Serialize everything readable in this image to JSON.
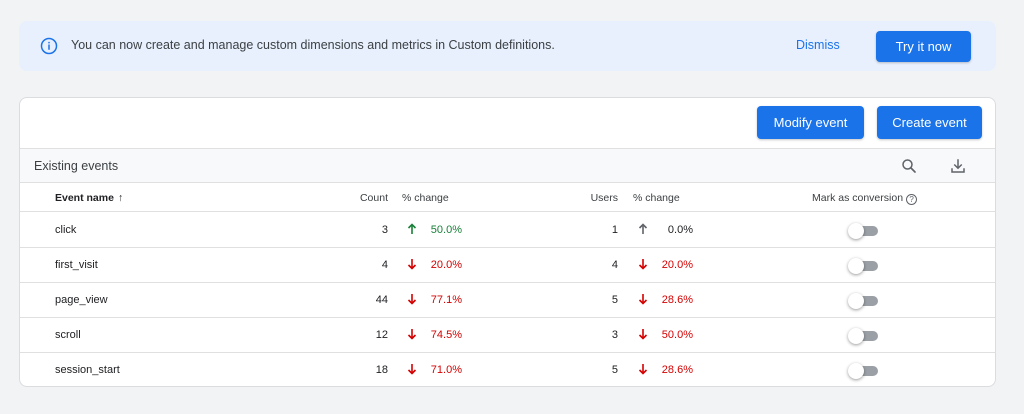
{
  "banner": {
    "message": "You can now create and manage custom dimensions and metrics in Custom definitions.",
    "dismiss_label": "Dismiss",
    "try_label": "Try it now",
    "icon": "info-icon"
  },
  "toolbar": {
    "modify_label": "Modify event",
    "create_label": "Create event"
  },
  "table": {
    "title": "Existing events",
    "search_icon": "search-icon",
    "download_icon": "download-icon",
    "headers": {
      "event_name": "Event name",
      "sort_arrow": "↑",
      "count": "Count",
      "count_change": "% change",
      "users": "Users",
      "users_change": "% change",
      "mark_conversion": "Mark as conversion",
      "help": "?"
    },
    "rows": [
      {
        "name": "click",
        "count": "3",
        "count_change": "50.0%",
        "count_dir": "up",
        "users": "1",
        "users_change": "0.0%",
        "users_dir": "neutral",
        "conversion": false
      },
      {
        "name": "first_visit",
        "count": "4",
        "count_change": "20.0%",
        "count_dir": "down",
        "users": "4",
        "users_change": "20.0%",
        "users_dir": "down",
        "conversion": false
      },
      {
        "name": "page_view",
        "count": "44",
        "count_change": "77.1%",
        "count_dir": "down",
        "users": "5",
        "users_change": "28.6%",
        "users_dir": "down",
        "conversion": false
      },
      {
        "name": "scroll",
        "count": "12",
        "count_change": "74.5%",
        "count_dir": "down",
        "users": "3",
        "users_change": "50.0%",
        "users_dir": "down",
        "conversion": false
      },
      {
        "name": "session_start",
        "count": "18",
        "count_change": "71.0%",
        "count_dir": "down",
        "users": "5",
        "users_change": "28.6%",
        "users_dir": "down",
        "conversion": false
      }
    ]
  },
  "colors": {
    "accent": "#1a73e8",
    "positive": "#188038",
    "negative": "#d50000",
    "neutral": "#5f6368"
  }
}
